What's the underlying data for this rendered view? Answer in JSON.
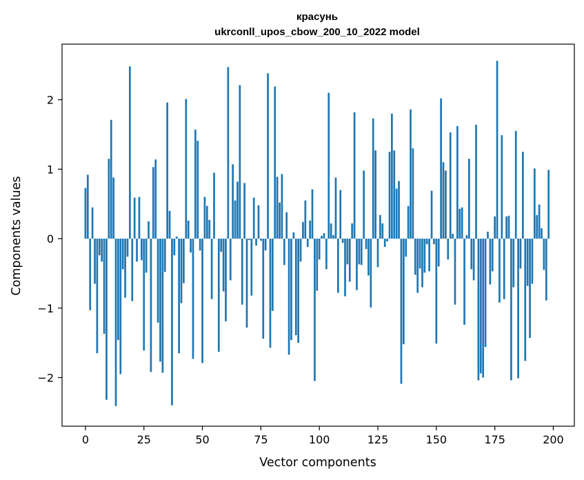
{
  "chart_data": {
    "type": "bar",
    "title_line1": "красунь",
    "title_line2": "ukrconll_upos_cbow_200_10_2022 model",
    "xlabel": "Vector components",
    "ylabel": "Components values",
    "xlim": [
      -10,
      209
    ],
    "ylim": [
      -2.7,
      2.8
    ],
    "x_ticks": [
      0,
      25,
      50,
      75,
      100,
      125,
      150,
      175,
      200
    ],
    "y_ticks": [
      -2,
      -1,
      0,
      1,
      2
    ],
    "y_tick_labels": [
      "−2",
      "−1",
      "0",
      "1",
      "2"
    ],
    "bar_color": "#1f77b4",
    "values": [
      0.73,
      0.92,
      -1.03,
      0.45,
      -0.65,
      -1.65,
      -0.24,
      -0.33,
      -1.37,
      -2.32,
      1.15,
      1.71,
      0.88,
      -2.41,
      -1.46,
      -1.95,
      -0.44,
      -0.85,
      -0.26,
      2.48,
      -0.9,
      0.59,
      -0.33,
      0.6,
      -0.31,
      -1.61,
      -0.49,
      0.25,
      -1.92,
      1.03,
      1.14,
      -1.21,
      -1.77,
      -1.93,
      -0.48,
      1.96,
      0.4,
      -2.4,
      -0.24,
      0.03,
      -1.65,
      -0.93,
      -0.64,
      2.01,
      0.26,
      -0.2,
      -1.73,
      1.57,
      1.41,
      -0.17,
      -1.79,
      0.6,
      0.47,
      0.27,
      -0.87,
      0.95,
      0.0,
      -1.63,
      -0.19,
      -0.76,
      -1.19,
      2.47,
      -0.6,
      1.07,
      0.55,
      0.82,
      2.21,
      -0.95,
      0.8,
      -1.28,
      -0.02,
      -0.82,
      0.59,
      -0.1,
      0.48,
      -0.03,
      -1.44,
      -0.17,
      2.38,
      -1.57,
      -1.04,
      2.19,
      0.89,
      0.52,
      0.93,
      -0.38,
      0.38,
      -1.67,
      -1.46,
      0.09,
      -1.39,
      -1.5,
      -0.33,
      0.24,
      0.55,
      -0.12,
      0.26,
      0.71,
      -2.05,
      -0.75,
      -0.3,
      0.04,
      0.08,
      -0.44,
      2.1,
      0.22,
      0.05,
      0.88,
      -0.78,
      0.7,
      -0.06,
      -0.83,
      -0.37,
      -0.62,
      0.22,
      1.82,
      -0.74,
      -0.37,
      -0.38,
      0.98,
      -0.15,
      -0.53,
      -0.99,
      1.73,
      1.27,
      -0.41,
      0.34,
      0.22,
      -0.12,
      -0.04,
      1.25,
      1.8,
      1.27,
      0.72,
      0.83,
      -2.09,
      -1.52,
      -0.26,
      0.47,
      1.86,
      1.3,
      -0.52,
      -0.78,
      -0.43,
      -0.7,
      -0.49,
      -0.08,
      -0.47,
      0.69,
      -0.08,
      -1.51,
      -0.4,
      2.02,
      1.1,
      0.98,
      -0.3,
      1.53,
      0.07,
      -0.95,
      1.62,
      0.43,
      0.45,
      -1.24,
      0.05,
      1.15,
      -0.44,
      -0.6,
      1.64,
      -2.04,
      -1.94,
      -2.0,
      -1.56,
      0.1,
      -0.66,
      -0.47,
      0.32,
      2.56,
      -0.92,
      1.49,
      -0.87,
      0.32,
      0.33,
      -2.04,
      -0.7,
      1.55,
      -2.01,
      -0.43,
      1.25,
      -1.76,
      -0.68,
      -1.43,
      -0.65,
      1.01,
      0.34,
      0.49,
      0.15,
      -0.45,
      -0.89,
      0.99
    ]
  }
}
